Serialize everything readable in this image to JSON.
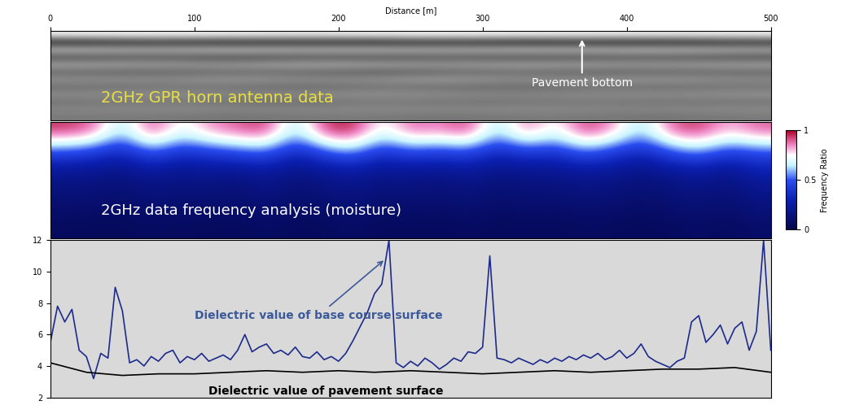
{
  "chart_data": [
    {
      "type": "image",
      "title": "2GHz GPR horn antenna data",
      "annotation": "Pavement bottom",
      "xlabel": "Distance [m]",
      "xlim": [
        0,
        500
      ],
      "xticks": [
        0,
        100,
        200,
        300,
        400,
        500
      ],
      "ylim": [
        14,
        0
      ],
      "tick_labels": "x",
      "cell_range": [
        -1,
        1
      ],
      "cells": [
        [
          0.9,
          0.95,
          0.9,
          0.85,
          0.9,
          0.95,
          0.9,
          0.9,
          0.85,
          0.9
        ],
        [
          -0.8,
          -0.7,
          -0.8,
          -0.75,
          -0.8,
          -0.7,
          -0.8,
          -0.75,
          -0.8,
          -0.7
        ],
        [
          0.5,
          0.4,
          0.55,
          0.45,
          0.5,
          0.4,
          0.5,
          0.45,
          0.5,
          0.4
        ],
        [
          -0.4,
          -0.3,
          -0.45,
          -0.35,
          -0.4,
          -0.3,
          -0.4,
          -0.35,
          -0.3,
          -0.4
        ],
        [
          0.3,
          0.25,
          0.2,
          0.35,
          0.3,
          0.2,
          0.3,
          0.25,
          0.2,
          0.3
        ],
        [
          -0.2,
          -0.25,
          -0.15,
          -0.2,
          -0.3,
          -0.2,
          -0.15,
          -0.25,
          -0.2,
          -0.2
        ],
        [
          0.15,
          0.1,
          0.2,
          0.1,
          0.15,
          0.25,
          0.1,
          0.15,
          0.2,
          0.1
        ],
        [
          -0.15,
          -0.1,
          -0.1,
          -0.2,
          -0.1,
          -0.15,
          -0.2,
          -0.1,
          -0.15,
          -0.1
        ],
        [
          0.1,
          0.15,
          0.05,
          0.1,
          0.15,
          0.1,
          0.05,
          0.1,
          0.1,
          0.15
        ],
        [
          -0.1,
          -0.05,
          -0.1,
          -0.15,
          -0.05,
          -0.1,
          -0.1,
          -0.05,
          -0.1,
          -0.1
        ],
        [
          0.05,
          0.1,
          0.05,
          0.05,
          0.1,
          0.05,
          0.1,
          0.05,
          0.05,
          0.1
        ],
        [
          -0.05,
          -0.05,
          -0.1,
          -0.05,
          -0.05,
          -0.1,
          -0.05,
          -0.05,
          -0.1,
          -0.05
        ]
      ]
    },
    {
      "type": "heatmap",
      "title": "2GHz data frequency analysis (moisture)",
      "xlim": [
        0,
        500
      ],
      "ylim": [
        6,
        0
      ],
      "tick_labels": false,
      "colorbar_label": "Frequency Ratio",
      "colorbar_lim": [
        0,
        1
      ],
      "colorbar_ticks": [
        0,
        0.5,
        1
      ],
      "cells": [
        [
          0.95,
          0.9,
          0.6,
          0.95,
          0.7,
          0.85,
          0.9,
          0.95,
          0.6,
          0.95,
          0.98,
          0.7,
          0.9,
          0.85,
          0.95,
          0.6,
          0.9,
          0.7,
          0.95,
          0.85,
          0.6,
          0.9,
          0.95,
          0.8,
          0.9
        ],
        [
          0.5,
          0.45,
          0.35,
          0.55,
          0.4,
          0.45,
          0.5,
          0.55,
          0.35,
          0.5,
          0.6,
          0.4,
          0.5,
          0.45,
          0.5,
          0.35,
          0.45,
          0.4,
          0.55,
          0.45,
          0.35,
          0.5,
          0.6,
          0.45,
          0.5
        ],
        [
          0.22,
          0.2,
          0.18,
          0.24,
          0.2,
          0.22,
          0.2,
          0.25,
          0.18,
          0.22,
          0.26,
          0.2,
          0.22,
          0.2,
          0.24,
          0.18,
          0.2,
          0.2,
          0.24,
          0.22,
          0.18,
          0.22,
          0.26,
          0.2,
          0.3
        ],
        [
          0.15,
          0.14,
          0.12,
          0.16,
          0.14,
          0.15,
          0.13,
          0.17,
          0.12,
          0.15,
          0.18,
          0.14,
          0.15,
          0.13,
          0.16,
          0.12,
          0.14,
          0.14,
          0.16,
          0.15,
          0.12,
          0.15,
          0.17,
          0.14,
          0.2
        ],
        [
          0.1,
          0.09,
          0.08,
          0.11,
          0.1,
          0.1,
          0.09,
          0.12,
          0.08,
          0.1,
          0.12,
          0.09,
          0.1,
          0.09,
          0.11,
          0.08,
          0.1,
          0.09,
          0.11,
          0.1,
          0.08,
          0.1,
          0.12,
          0.1,
          0.14
        ],
        [
          0.06,
          0.05,
          0.05,
          0.07,
          0.06,
          0.06,
          0.05,
          0.08,
          0.05,
          0.06,
          0.08,
          0.05,
          0.06,
          0.05,
          0.07,
          0.05,
          0.06,
          0.05,
          0.07,
          0.06,
          0.05,
          0.06,
          0.08,
          0.06,
          0.09
        ]
      ]
    },
    {
      "type": "line",
      "xlim": [
        0,
        500
      ],
      "ylim": [
        2,
        12
      ],
      "yticks": [
        2,
        4,
        6,
        8,
        10,
        12
      ],
      "tick_labels": "y",
      "series": [
        {
          "name": "Dielectric value of base course surface",
          "color": "#1c2a8c",
          "x": [
            0,
            5,
            10,
            15,
            20,
            25,
            30,
            35,
            40,
            45,
            50,
            55,
            60,
            65,
            70,
            75,
            80,
            85,
            90,
            95,
            100,
            105,
            110,
            115,
            120,
            125,
            130,
            135,
            140,
            145,
            150,
            155,
            160,
            165,
            170,
            175,
            180,
            185,
            190,
            195,
            200,
            205,
            210,
            215,
            220,
            225,
            230,
            235,
            240,
            245,
            250,
            255,
            260,
            265,
            270,
            275,
            280,
            285,
            290,
            295,
            300,
            305,
            310,
            315,
            320,
            325,
            330,
            335,
            340,
            345,
            350,
            355,
            360,
            365,
            370,
            375,
            380,
            385,
            390,
            395,
            400,
            405,
            410,
            415,
            420,
            425,
            430,
            435,
            440,
            445,
            450,
            455,
            460,
            465,
            470,
            475,
            480,
            485,
            490,
            495,
            500
          ],
          "values": [
            5.5,
            7.8,
            6.8,
            7.6,
            5.0,
            4.6,
            3.2,
            4.8,
            4.5,
            9.0,
            7.5,
            4.2,
            4.4,
            4.0,
            4.6,
            4.3,
            4.8,
            5.0,
            4.2,
            4.6,
            4.4,
            4.8,
            4.3,
            4.5,
            4.7,
            4.4,
            5.0,
            6.0,
            4.9,
            5.2,
            5.4,
            4.8,
            5.0,
            4.7,
            5.2,
            4.6,
            4.5,
            4.9,
            4.4,
            4.6,
            4.3,
            4.8,
            5.6,
            6.5,
            7.4,
            8.6,
            9.2,
            12.0,
            4.2,
            3.9,
            4.3,
            4.0,
            4.5,
            4.2,
            3.8,
            4.1,
            4.5,
            4.3,
            4.9,
            4.8,
            5.2,
            11.0,
            4.5,
            4.4,
            4.2,
            4.5,
            4.3,
            4.1,
            4.4,
            4.2,
            4.5,
            4.3,
            4.6,
            4.4,
            4.7,
            4.5,
            4.8,
            4.4,
            4.6,
            5.0,
            4.5,
            4.8,
            5.4,
            4.6,
            4.3,
            4.1,
            3.9,
            4.3,
            4.5,
            6.8,
            7.2,
            5.5,
            6.0,
            6.6,
            5.4,
            6.4,
            6.8,
            5.0,
            6.2,
            12.0,
            5.0
          ]
        },
        {
          "name": "Dielectric value of pavement surface",
          "color": "#000000",
          "x": [
            0,
            25,
            50,
            75,
            100,
            125,
            150,
            175,
            200,
            225,
            250,
            275,
            300,
            325,
            350,
            375,
            400,
            425,
            450,
            475,
            500
          ],
          "values": [
            4.2,
            3.6,
            3.4,
            3.5,
            3.5,
            3.6,
            3.7,
            3.6,
            3.7,
            3.6,
            3.7,
            3.6,
            3.5,
            3.6,
            3.7,
            3.6,
            3.7,
            3.8,
            3.8,
            3.9,
            3.6
          ]
        }
      ]
    }
  ]
}
